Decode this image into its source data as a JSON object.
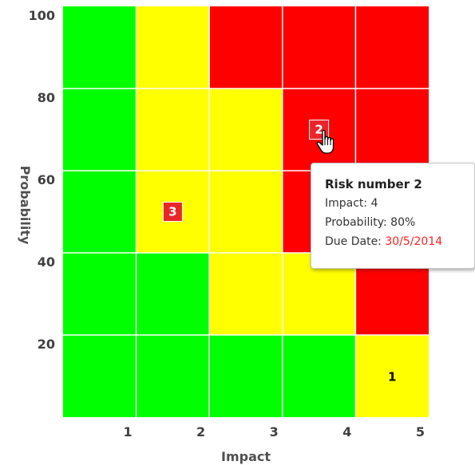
{
  "chart_data": {
    "type": "heatmap",
    "xlabel": "Impact",
    "ylabel": "Probability",
    "xlim": [
      0,
      5
    ],
    "ylim": [
      0,
      100
    ],
    "x_ticks": [
      "1",
      "2",
      "3",
      "4",
      "5"
    ],
    "y_ticks": [
      "20",
      "40",
      "60",
      "80",
      "100"
    ],
    "zone_colors": {
      "green": "#00ff00",
      "yellow": "#ffff00",
      "red": "#ff0000"
    },
    "grid_rows_top_to_bottom": [
      [
        "green",
        "yellow",
        "red",
        "red",
        "red"
      ],
      [
        "green",
        "yellow",
        "yellow",
        "red",
        "red"
      ],
      [
        "green",
        "yellow",
        "yellow",
        "red",
        "red"
      ],
      [
        "green",
        "green",
        "yellow",
        "yellow",
        "red"
      ],
      [
        "green",
        "green",
        "green",
        "green",
        "yellow"
      ]
    ],
    "risks": [
      {
        "label": "1",
        "impact": 4.5,
        "probability": 10,
        "style": "plain"
      },
      {
        "label": "2",
        "impact": 3.5,
        "probability": 70,
        "style": "box",
        "hovered": true
      },
      {
        "label": "3",
        "impact": 1.5,
        "probability": 50,
        "style": "box"
      }
    ]
  },
  "tooltip": {
    "title": "Risk number 2",
    "impact_label": "Impact: ",
    "impact_value": "4",
    "probability_label": "Probability: ",
    "probability_value": "80%",
    "due_label": "Due Date: ",
    "due_value": "30/5/2014"
  },
  "marker_color": "#e8262a",
  "cursor_icon": "hand-pointer-icon"
}
